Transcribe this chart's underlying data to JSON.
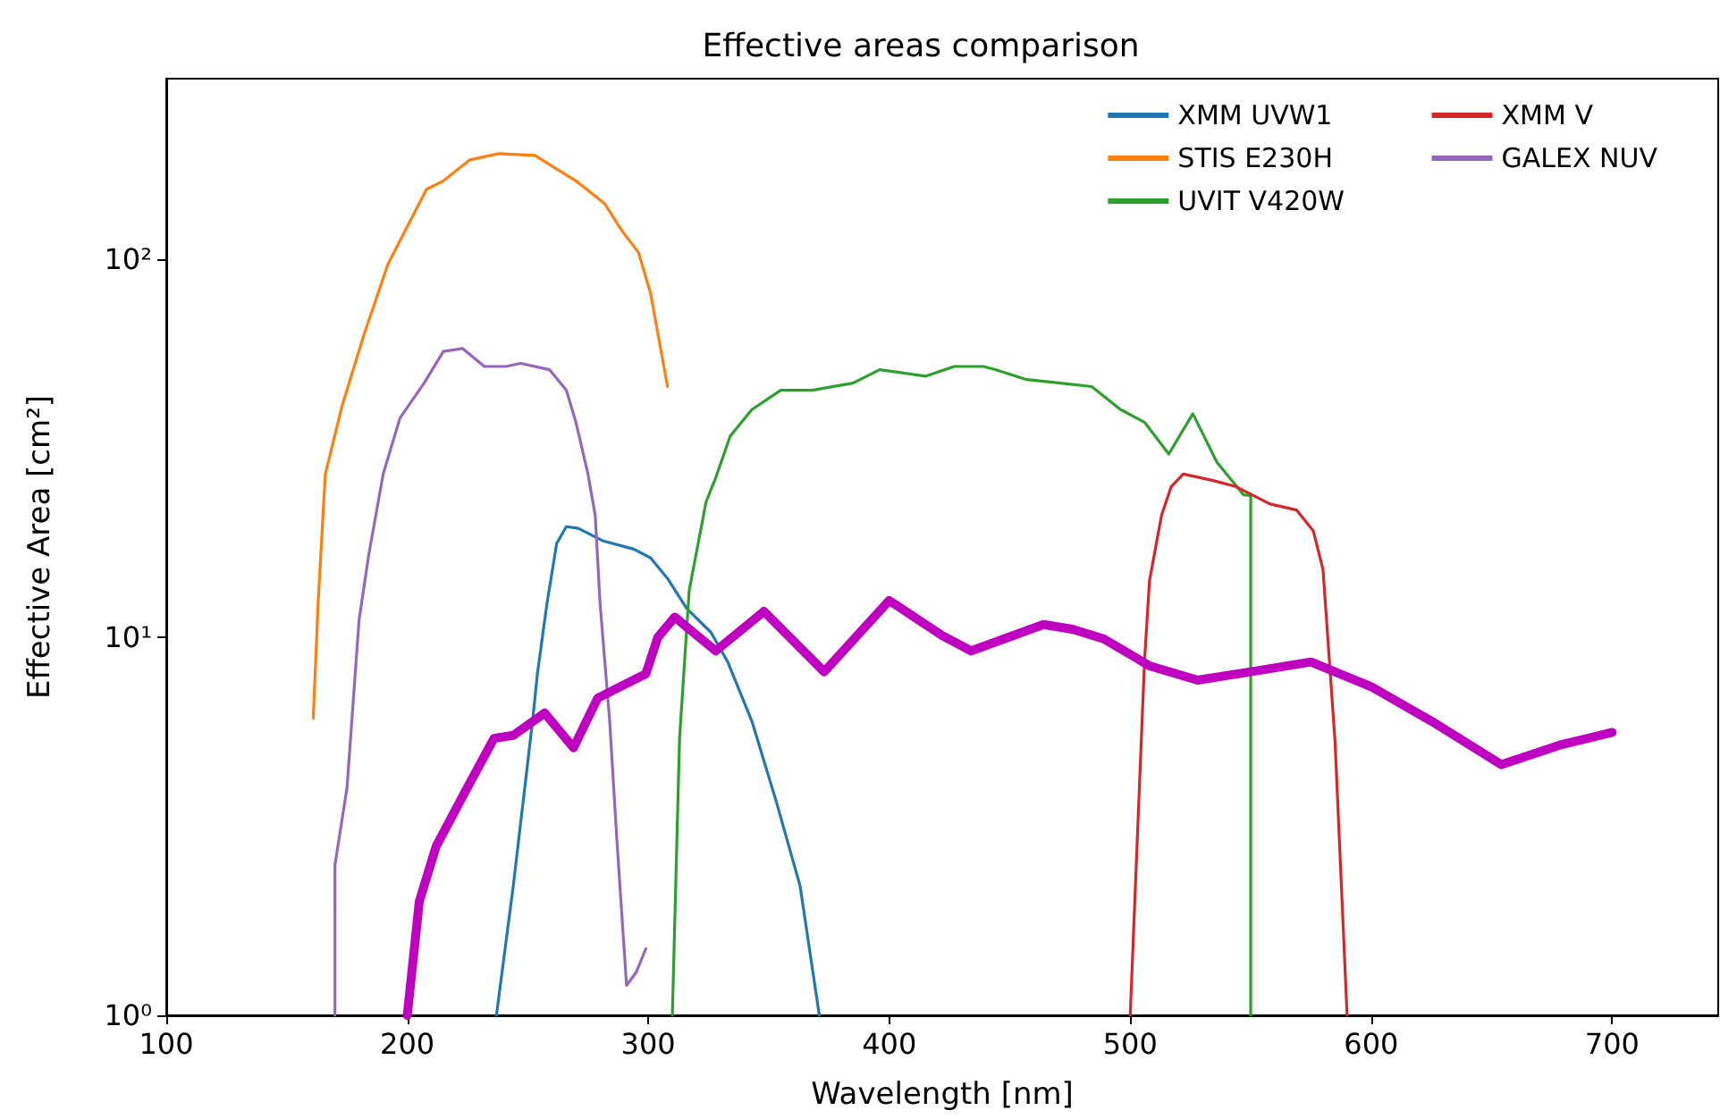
{
  "chart_data": {
    "type": "line",
    "title": "Effective areas comparison",
    "xlabel": "Wavelength [nm]",
    "ylabel": "Effective Area [cm²]",
    "xlim": [
      100,
      744
    ],
    "xticks": [
      100,
      200,
      300,
      400,
      500,
      600,
      700
    ],
    "ylim": [
      1,
      300
    ],
    "yticks": [
      {
        "value": 1,
        "label": "10⁰"
      },
      {
        "value": 10,
        "label": "10¹"
      },
      {
        "value": 100,
        "label": "10²"
      }
    ],
    "log": "y",
    "grid": false,
    "legend": "top right",
    "marker": "none",
    "line_style": "solid",
    "series": [
      {
        "name": "XMM UVW1",
        "color": "#1f77b4",
        "x": [
          237,
          244,
          252,
          254,
          258,
          262,
          266,
          271,
          281,
          294,
          301,
          308,
          316,
          326,
          333,
          343,
          353,
          363,
          371
        ],
        "values": [
          1.0,
          2.2,
          6.0,
          8.0,
          12.3,
          17.7,
          19.6,
          19.4,
          18.0,
          17.1,
          16.2,
          14.3,
          11.9,
          10.3,
          8.6,
          6.0,
          3.7,
          2.2,
          1.0
        ]
      },
      {
        "name": "STIS E230H",
        "color": "#ff7f0e",
        "x": [
          161,
          163,
          166,
          173,
          182,
          192,
          208,
          215,
          226,
          238,
          253,
          262,
          270,
          282,
          289,
          296,
          301,
          308
        ],
        "values": [
          6.1,
          12.3,
          27,
          41,
          63,
          97,
          153,
          161,
          183,
          190,
          188,
          173,
          161,
          140,
          119,
          104,
          81,
          46
        ]
      },
      {
        "name": "UVIT V420W",
        "color": "#2ca02c",
        "x": [
          310,
          313,
          317,
          324,
          328,
          334,
          343,
          355,
          368,
          385,
          396,
          415,
          427,
          439,
          444,
          457,
          471,
          484,
          496,
          506,
          516,
          526,
          536,
          547,
          550,
          550
        ],
        "values": [
          1.0,
          5.4,
          13.3,
          22.8,
          26.4,
          34,
          40,
          45,
          45,
          47,
          51,
          49,
          52,
          52,
          51,
          48,
          47,
          46,
          40,
          37,
          30.5,
          39,
          29,
          23.8,
          23.7,
          1.0
        ]
      },
      {
        "name": "XMM V",
        "color": "#d62728",
        "x": [
          500,
          504,
          506,
          508,
          513,
          517,
          522,
          534,
          544,
          558,
          569,
          576,
          580,
          585,
          590
        ],
        "values": [
          1.0,
          4.3,
          8.8,
          14.1,
          21,
          25,
          27,
          26,
          25,
          22.5,
          21.7,
          19.1,
          15.1,
          5.3,
          1.0
        ]
      },
      {
        "name": "GALEX NUV",
        "color": "#9467bd",
        "x": [
          170,
          170,
          175,
          180,
          184,
          190,
          197,
          207,
          215,
          223,
          232,
          241,
          247,
          259,
          266,
          270,
          275,
          278,
          280,
          284,
          287,
          291,
          295,
          299
        ],
        "values": [
          1.0,
          2.5,
          4.0,
          11.1,
          16.5,
          27,
          38,
          47,
          57,
          58,
          52,
          52,
          53,
          51,
          45,
          37,
          27,
          21,
          12.3,
          6.0,
          2.9,
          1.2,
          1.3,
          1.5
        ]
      },
      {
        "color": "#c000c0",
        "x": [
          200,
          205,
          212,
          224,
          236,
          244,
          257,
          269,
          279,
          299,
          304,
          311,
          328,
          348,
          373,
          400,
          422,
          434,
          464,
          476,
          489,
          508,
          528,
          550,
          575,
          600,
          625,
          654,
          679,
          700
        ],
        "values": [
          1.0,
          2.0,
          2.8,
          3.9,
          5.4,
          5.5,
          6.3,
          5.1,
          6.9,
          8.0,
          10.0,
          11.3,
          9.2,
          11.7,
          8.1,
          12.5,
          10.1,
          9.2,
          10.8,
          10.5,
          9.9,
          8.4,
          7.7,
          8.1,
          8.6,
          7.4,
          6.0,
          4.6,
          5.2,
          5.6
        ]
      }
    ]
  }
}
